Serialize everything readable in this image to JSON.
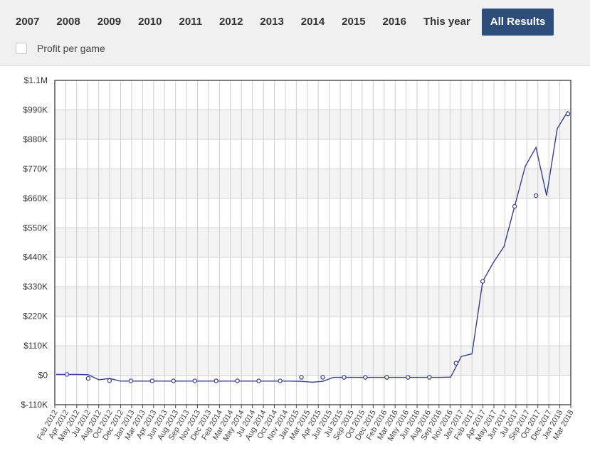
{
  "tabs": [
    {
      "label": "2007",
      "active": false
    },
    {
      "label": "2008",
      "active": false
    },
    {
      "label": "2009",
      "active": false
    },
    {
      "label": "2010",
      "active": false
    },
    {
      "label": "2011",
      "active": false
    },
    {
      "label": "2012",
      "active": false
    },
    {
      "label": "2013",
      "active": false
    },
    {
      "label": "2014",
      "active": false
    },
    {
      "label": "2015",
      "active": false
    },
    {
      "label": "2016",
      "active": false
    },
    {
      "label": "This year",
      "active": false
    },
    {
      "label": "All Results",
      "active": true
    }
  ],
  "options": {
    "profit_per_game_label": "Profit per game",
    "profit_per_game_checked": false
  },
  "colors": {
    "accent": "#2e4d7b",
    "line": "#3a3f8f",
    "grid": "#cfcfcf",
    "band": "#f4f4f4"
  },
  "chart_data": {
    "type": "line",
    "title": "",
    "xlabel": "",
    "ylabel": "",
    "ylim": [
      -110000,
      1100000
    ],
    "y_ticks": [
      -110000,
      0,
      110000,
      220000,
      330000,
      440000,
      550000,
      660000,
      770000,
      880000,
      990000,
      1100000
    ],
    "y_tick_labels": [
      "$-110K",
      "$0",
      "$110K",
      "$220K",
      "$330K",
      "$440K",
      "$550K",
      "$660K",
      "$770K",
      "$880K",
      "$990K",
      "$1.1M"
    ],
    "x_tick_labels": [
      "Feb 2012",
      "Apr 2012",
      "May 2012",
      "Jul 2012",
      "Aug 2012",
      "Oct 2012",
      "Dec 2012",
      "Jan 2013",
      "Mar 2013",
      "Apr 2013",
      "Jun 2013",
      "Aug 2013",
      "Sep 2013",
      "Nov 2013",
      "Dec 2013",
      "Feb 2014",
      "Mar 2014",
      "May 2014",
      "Jul 2014",
      "Aug 2014",
      "Oct 2014",
      "Nov 2014",
      "Jan 2015",
      "Mar 2015",
      "Apr 2015",
      "Jun 2015",
      "Jul 2015",
      "Sep 2015",
      "Oct 2015",
      "Dec 2015",
      "Feb 2016",
      "Mar 2016",
      "May 2016",
      "Jun 2016",
      "Aug 2016",
      "Sep 2016",
      "Nov 2016",
      "Jan 2017",
      "Feb 2017",
      "Apr 2017",
      "May 2017",
      "Jun 2017",
      "Jul 2017",
      "Sep 2017",
      "Oct 2017",
      "Dec 2017",
      "Jan 2018",
      "Mar 2018"
    ],
    "grid": true,
    "legend": "none",
    "series": [
      {
        "values": [
          [
            0,
            3000
          ],
          [
            1,
            3000
          ],
          [
            2,
            3000
          ],
          [
            3,
            2000
          ],
          [
            4,
            -17000
          ],
          [
            5,
            -12000
          ],
          [
            6,
            -22000
          ],
          [
            7,
            -22000
          ],
          [
            8,
            -22000
          ],
          [
            9,
            -22000
          ],
          [
            10,
            -22000
          ],
          [
            11,
            -22000
          ],
          [
            12,
            -22000
          ],
          [
            13,
            -22000
          ],
          [
            14,
            -22000
          ],
          [
            15,
            -22000
          ],
          [
            16,
            -22000
          ],
          [
            17,
            -22000
          ],
          [
            18,
            -22000
          ],
          [
            19,
            -22000
          ],
          [
            20,
            -22000
          ],
          [
            21,
            -22000
          ],
          [
            22,
            -22000
          ],
          [
            23,
            -23000
          ],
          [
            24,
            -26000
          ],
          [
            25,
            -23000
          ],
          [
            26,
            -8000
          ],
          [
            27,
            -8000
          ],
          [
            28,
            -8000
          ],
          [
            29,
            -8000
          ],
          [
            30,
            -8000
          ],
          [
            31,
            -8000
          ],
          [
            32,
            -8000
          ],
          [
            33,
            -8000
          ],
          [
            34,
            -8000
          ],
          [
            35,
            -8000
          ],
          [
            36,
            -8000
          ],
          [
            37,
            -7000
          ],
          [
            38,
            70000
          ],
          [
            39,
            80000
          ],
          [
            40,
            350000
          ],
          [
            41,
            420000
          ],
          [
            42,
            480000
          ],
          [
            43,
            630000
          ],
          [
            44,
            780000
          ],
          [
            45,
            850000
          ],
          [
            46,
            670000
          ],
          [
            47,
            920000
          ],
          [
            48,
            985000
          ]
        ],
        "markers": [
          [
            1,
            3000
          ],
          [
            3,
            -12000
          ],
          [
            5,
            -20000
          ],
          [
            7,
            -21000
          ],
          [
            9,
            -21000
          ],
          [
            11,
            -21000
          ],
          [
            13,
            -21000
          ],
          [
            15,
            -21000
          ],
          [
            17,
            -21000
          ],
          [
            19,
            -21000
          ],
          [
            21,
            -21000
          ],
          [
            23,
            -8000
          ],
          [
            25,
            -8000
          ],
          [
            27,
            -8000
          ],
          [
            29,
            -8000
          ],
          [
            31,
            -8000
          ],
          [
            33,
            -8000
          ],
          [
            35,
            -8000
          ],
          [
            37.5,
            45000
          ],
          [
            40,
            350000
          ],
          [
            43,
            630000
          ],
          [
            45,
            670000
          ],
          [
            48,
            975000
          ]
        ]
      }
    ]
  }
}
